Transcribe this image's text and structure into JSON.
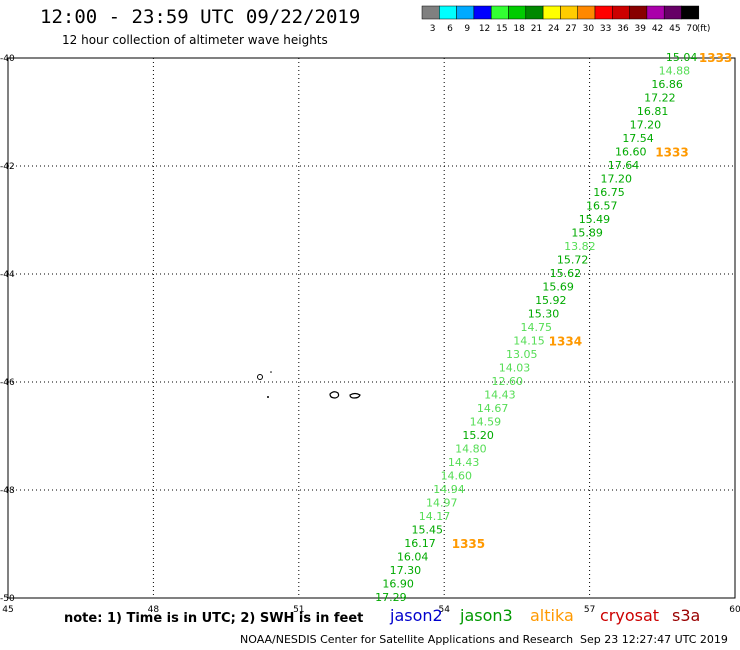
{
  "header": {
    "title": "12:00 - 23:59 UTC 09/22/2019",
    "subtitle": "12 hour collection of altimeter wave heights"
  },
  "legend": {
    "unit": "(ft)",
    "bins": [
      {
        "label": "3",
        "color": "#808080"
      },
      {
        "label": "6",
        "color": "#00ffff"
      },
      {
        "label": "9",
        "color": "#00aaff"
      },
      {
        "label": "12",
        "color": "#0000ff"
      },
      {
        "label": "15",
        "color": "#33ff33"
      },
      {
        "label": "18",
        "color": "#00cc00"
      },
      {
        "label": "21",
        "color": "#008800"
      },
      {
        "label": "24",
        "color": "#ffff00"
      },
      {
        "label": "27",
        "color": "#ffcc00"
      },
      {
        "label": "30",
        "color": "#ff8800"
      },
      {
        "label": "33",
        "color": "#ff0000"
      },
      {
        "label": "36",
        "color": "#cc0000"
      },
      {
        "label": "39",
        "color": "#880000"
      },
      {
        "label": "42",
        "color": "#aa00aa"
      },
      {
        "label": "45",
        "color": "#660066"
      },
      {
        "label": "70",
        "color": "#000000"
      }
    ]
  },
  "footer": {
    "note": "note: 1) Time is in UTC; 2) SWH is in feet",
    "satellites": [
      {
        "label": "jason2",
        "color": "#0000cc"
      },
      {
        "label": "jason3",
        "color": "#009900"
      },
      {
        "label": "altika",
        "color": "#ff9900"
      },
      {
        "label": "cryosat",
        "color": "#cc0000"
      },
      {
        "label": "s3a",
        "color": "#990000"
      }
    ],
    "credit": "NOAA/NESDIS Center for Satellite Applications and Research",
    "timestamp": "Sep 23 12:27:47 UTC 2019"
  },
  "chart_data": {
    "type": "scatter",
    "xlim": [
      45,
      60
    ],
    "ylim": [
      -50,
      -40
    ],
    "xticks": [
      "45",
      "48",
      "51",
      "54",
      "57",
      "60"
    ],
    "yticks": [
      "-40",
      "-42",
      "-44",
      "-46",
      "-48",
      "-50"
    ],
    "grid": true,
    "colors": {
      "dark_green": "#00aa00",
      "light_green": "#55dd55",
      "time_label": "#ff9900"
    },
    "points": [
      {
        "lon": 58.9,
        "lat": -40.0,
        "value": "15.04",
        "shade": "dark_green"
      },
      {
        "lon": 58.75,
        "lat": -40.25,
        "value": "14.88",
        "shade": "light_green"
      },
      {
        "lon": 58.6,
        "lat": -40.5,
        "value": "16.86",
        "shade": "dark_green"
      },
      {
        "lon": 58.45,
        "lat": -40.75,
        "value": "17.22",
        "shade": "dark_green"
      },
      {
        "lon": 58.3,
        "lat": -41.0,
        "value": "16.81",
        "shade": "dark_green"
      },
      {
        "lon": 58.15,
        "lat": -41.25,
        "value": "17.20",
        "shade": "dark_green"
      },
      {
        "lon": 58.0,
        "lat": -41.5,
        "value": "17.54",
        "shade": "dark_green"
      },
      {
        "lon": 57.85,
        "lat": -41.75,
        "value": "16.60",
        "shade": "dark_green"
      },
      {
        "lon": 57.7,
        "lat": -42.0,
        "value": "17.64",
        "shade": "dark_green"
      },
      {
        "lon": 57.55,
        "lat": -42.25,
        "value": "17.20",
        "shade": "dark_green"
      },
      {
        "lon": 57.4,
        "lat": -42.5,
        "value": "16.75",
        "shade": "dark_green"
      },
      {
        "lon": 57.25,
        "lat": -42.75,
        "value": "16.57",
        "shade": "dark_green"
      },
      {
        "lon": 57.1,
        "lat": -43.0,
        "value": "15.49",
        "shade": "dark_green"
      },
      {
        "lon": 56.95,
        "lat": -43.25,
        "value": "15.89",
        "shade": "dark_green"
      },
      {
        "lon": 56.8,
        "lat": -43.5,
        "value": "13.82",
        "shade": "light_green"
      },
      {
        "lon": 56.65,
        "lat": -43.75,
        "value": "15.72",
        "shade": "dark_green"
      },
      {
        "lon": 56.5,
        "lat": -44.0,
        "value": "15.62",
        "shade": "dark_green"
      },
      {
        "lon": 56.35,
        "lat": -44.25,
        "value": "15.69",
        "shade": "dark_green"
      },
      {
        "lon": 56.2,
        "lat": -44.5,
        "value": "15.92",
        "shade": "dark_green"
      },
      {
        "lon": 56.05,
        "lat": -44.75,
        "value": "15.30",
        "shade": "dark_green"
      },
      {
        "lon": 55.9,
        "lat": -45.0,
        "value": "14.75",
        "shade": "light_green"
      },
      {
        "lon": 55.75,
        "lat": -45.25,
        "value": "14.15",
        "shade": "light_green"
      },
      {
        "lon": 55.6,
        "lat": -45.5,
        "value": "13.05",
        "shade": "light_green"
      },
      {
        "lon": 55.45,
        "lat": -45.75,
        "value": "14.03",
        "shade": "light_green"
      },
      {
        "lon": 55.3,
        "lat": -46.0,
        "value": "12.60",
        "shade": "light_green"
      },
      {
        "lon": 55.15,
        "lat": -46.25,
        "value": "14.43",
        "shade": "light_green"
      },
      {
        "lon": 55.0,
        "lat": -46.5,
        "value": "14.67",
        "shade": "light_green"
      },
      {
        "lon": 54.85,
        "lat": -46.75,
        "value": "14.59",
        "shade": "light_green"
      },
      {
        "lon": 54.7,
        "lat": -47.0,
        "value": "15.20",
        "shade": "dark_green"
      },
      {
        "lon": 54.55,
        "lat": -47.25,
        "value": "14.80",
        "shade": "light_green"
      },
      {
        "lon": 54.4,
        "lat": -47.5,
        "value": "14.43",
        "shade": "light_green"
      },
      {
        "lon": 54.25,
        "lat": -47.75,
        "value": "14.60",
        "shade": "light_green"
      },
      {
        "lon": 54.1,
        "lat": -48.0,
        "value": "14.94",
        "shade": "light_green"
      },
      {
        "lon": 53.95,
        "lat": -48.25,
        "value": "14.97",
        "shade": "light_green"
      },
      {
        "lon": 53.8,
        "lat": -48.5,
        "value": "14.17",
        "shade": "light_green"
      },
      {
        "lon": 53.65,
        "lat": -48.75,
        "value": "15.45",
        "shade": "dark_green"
      },
      {
        "lon": 53.5,
        "lat": -49.0,
        "value": "16.17",
        "shade": "dark_green"
      },
      {
        "lon": 53.35,
        "lat": -49.25,
        "value": "16.04",
        "shade": "dark_green"
      },
      {
        "lon": 53.2,
        "lat": -49.5,
        "value": "17.30",
        "shade": "dark_green"
      },
      {
        "lon": 53.05,
        "lat": -49.75,
        "value": "16.90",
        "shade": "dark_green"
      },
      {
        "lon": 52.9,
        "lat": -50.0,
        "value": "17.29",
        "shade": "dark_green"
      }
    ],
    "time_labels": [
      {
        "lon": 59.6,
        "lat": -40.0,
        "text": "1333"
      },
      {
        "lon": 58.7,
        "lat": -41.75,
        "text": "1333"
      },
      {
        "lon": 56.5,
        "lat": -45.25,
        "text": "1334"
      },
      {
        "lon": 54.5,
        "lat": -49.0,
        "text": "1335"
      }
    ]
  }
}
